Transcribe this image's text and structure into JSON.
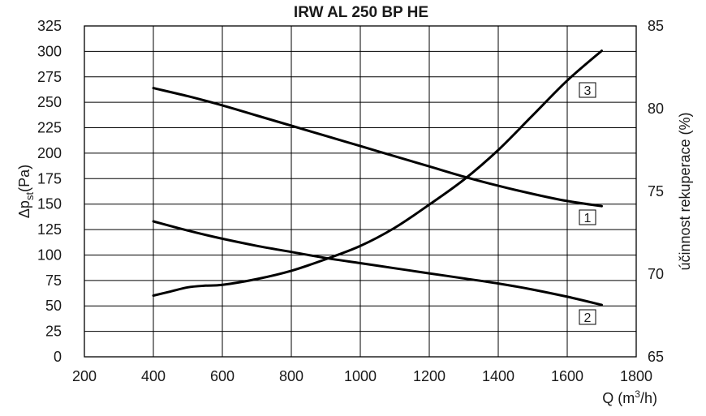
{
  "chart_data": {
    "type": "line",
    "title": "IRW AL 250 BP HE",
    "xlabel": "Q (m³/h)",
    "xlabel_base": "Q (m",
    "xlabel_sup": "3",
    "xlabel_tail": "/h)",
    "ylabel_base": "Δp",
    "ylabel_sub": "st",
    "ylabel_tail": "(Pa)",
    "y2label": "účinnost rekuperace (%)",
    "xlim": [
      200,
      1800
    ],
    "ylim": [
      0,
      325
    ],
    "y2lim": [
      65,
      85
    ],
    "x_ticks": [
      200,
      400,
      600,
      800,
      1000,
      1200,
      1400,
      1600,
      1800
    ],
    "y_ticks": [
      0,
      25,
      50,
      75,
      100,
      125,
      150,
      175,
      200,
      225,
      250,
      275,
      300,
      325
    ],
    "y2_ticks": [
      65,
      70,
      75,
      80,
      85
    ],
    "grid": true,
    "series": [
      {
        "name": "1",
        "axis": "left",
        "x": [
          400,
          500,
          600,
          700,
          800,
          900,
          1000,
          1100,
          1200,
          1300,
          1400,
          1500,
          1600,
          1700
        ],
        "y": [
          264,
          256,
          247,
          237,
          227,
          217,
          207,
          197,
          187,
          177,
          168,
          160,
          153,
          148
        ]
      },
      {
        "name": "2",
        "axis": "left",
        "x": [
          400,
          500,
          600,
          700,
          800,
          900,
          1000,
          1100,
          1200,
          1300,
          1400,
          1500,
          1600,
          1700
        ],
        "y": [
          133,
          124,
          116,
          109,
          103,
          97,
          92,
          87,
          82,
          77,
          72,
          66,
          59,
          51
        ]
      },
      {
        "name": "3",
        "axis": "right",
        "x": [
          400,
          450,
          500,
          550,
          600,
          700,
          800,
          900,
          1000,
          1100,
          1200,
          1300,
          1400,
          1500,
          1600,
          1700
        ],
        "y": [
          68.7,
          68.95,
          69.2,
          69.3,
          69.35,
          69.7,
          70.2,
          70.9,
          71.7,
          72.8,
          74.2,
          75.7,
          77.5,
          79.6,
          81.7,
          83.5
        ]
      }
    ]
  }
}
